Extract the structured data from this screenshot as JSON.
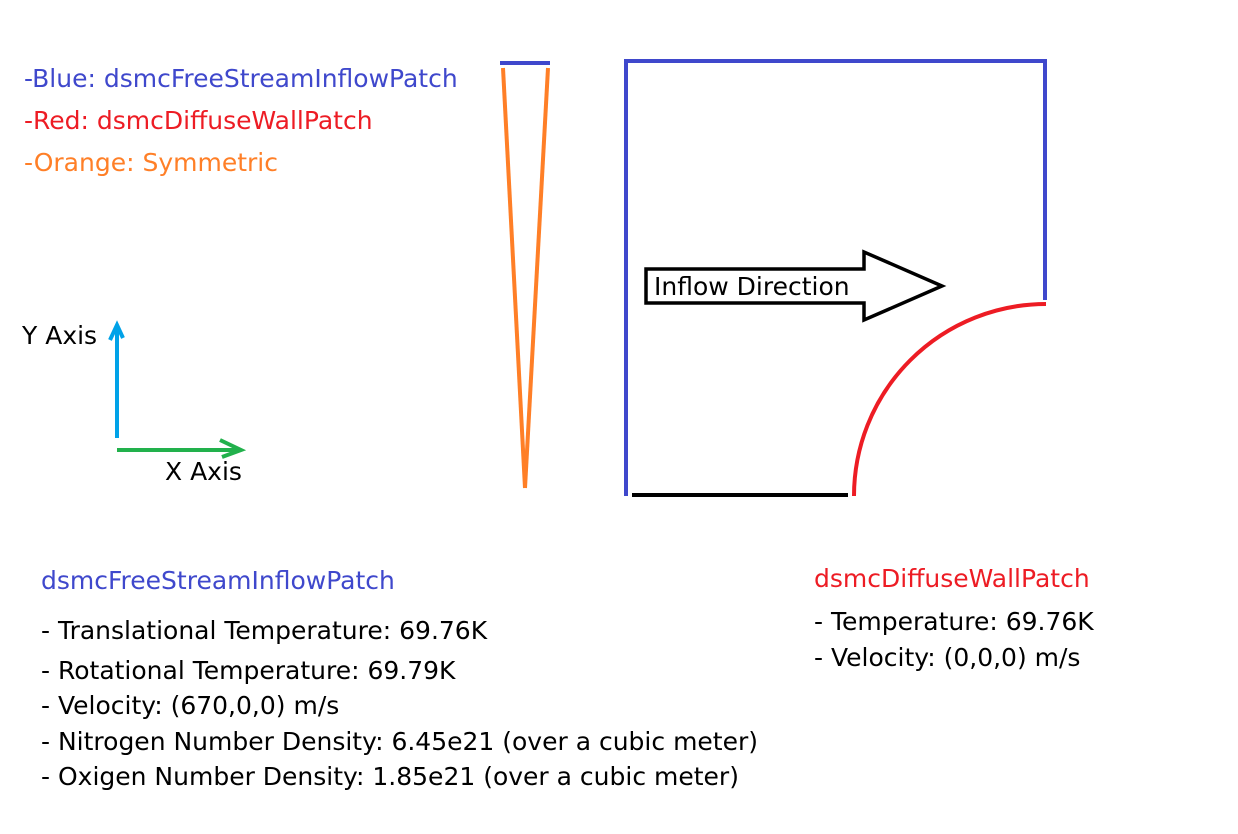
{
  "legend": {
    "blue": "-Blue: dsmcFreeStreamInflowPatch",
    "red": "-Red: dsmcDiffuseWallPatch",
    "orange": "-Orange: Symmetric"
  },
  "axes": {
    "y_label": "Y Axis",
    "x_label": "X Axis"
  },
  "arrow_label": "Inflow Direction",
  "inflow_patch": {
    "title": "dsmcFreeStreamInflowPatch",
    "items": [
      "- Translational Temperature: 69.76K",
      "- Rotational Temperature: 69.79K",
      "- Velocity: (670,0,0) m/s",
      "- Nitrogen Number Density: 6.45e21 (over a cubic meter)",
      "- Oxigen Number Density: 1.85e21 (over a cubic meter)"
    ]
  },
  "wall_patch": {
    "title": "dsmcDiffuseWallPatch",
    "items": [
      "- Temperature: 69.76K",
      "- Velocity: (0,0,0) m/s"
    ]
  },
  "colors": {
    "blue": "#3f48cc",
    "red": "#ed1c24",
    "orange": "#ff7f27",
    "axis_y": "#00a2e8",
    "axis_x": "#22b14c",
    "black": "#000000"
  }
}
